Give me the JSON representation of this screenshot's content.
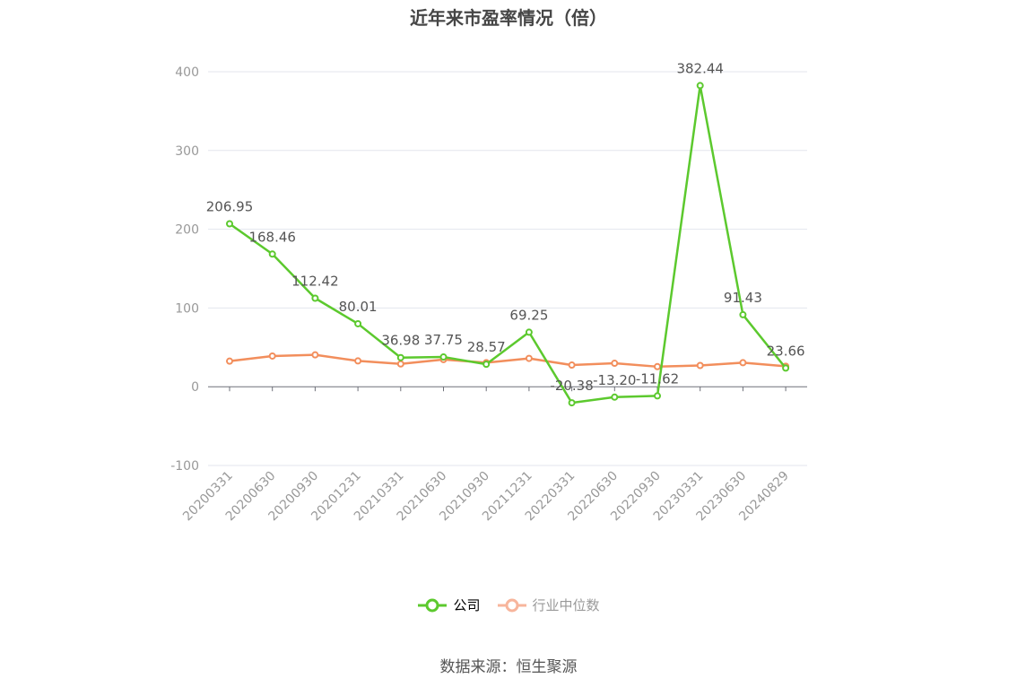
{
  "chart_data": {
    "type": "line",
    "title": "近年来市盈率情况（倍）",
    "categories": [
      "20200331",
      "20200630",
      "20200930",
      "20201231",
      "20210331",
      "20210630",
      "20210930",
      "20211231",
      "20220331",
      "20220630",
      "20220930",
      "20230331",
      "20230630",
      "20240829"
    ],
    "series": [
      {
        "name": "公司",
        "color": "#5cc92e",
        "values": [
          206.95,
          168.46,
          112.42,
          80.01,
          36.98,
          37.75,
          28.57,
          69.25,
          -20.38,
          -13.2,
          -11.62,
          382.44,
          91.43,
          23.66
        ],
        "labels": [
          "206.95",
          "168.46",
          "112.42",
          "80.01",
          "36.98",
          "37.75",
          "28.57",
          "69.25",
          "-20.38",
          "-13.20",
          "-11.62",
          "382.44",
          "91.43",
          "23.66"
        ]
      },
      {
        "name": "行业中位数",
        "color": "#f28e5c",
        "legend_color": "#f7b59c",
        "values": [
          32.5,
          39.0,
          40.5,
          32.8,
          29.0,
          34.5,
          30.5,
          36.0,
          27.5,
          29.8,
          25.5,
          27.0,
          30.5,
          26.0
        ]
      }
    ],
    "yticks": [
      "400",
      "300",
      "200",
      "100",
      "0",
      "-100"
    ],
    "ylim": [
      -100,
      400
    ],
    "grid": true,
    "legend_position": "bottom-center"
  },
  "source": "数据来源：恒生聚源"
}
